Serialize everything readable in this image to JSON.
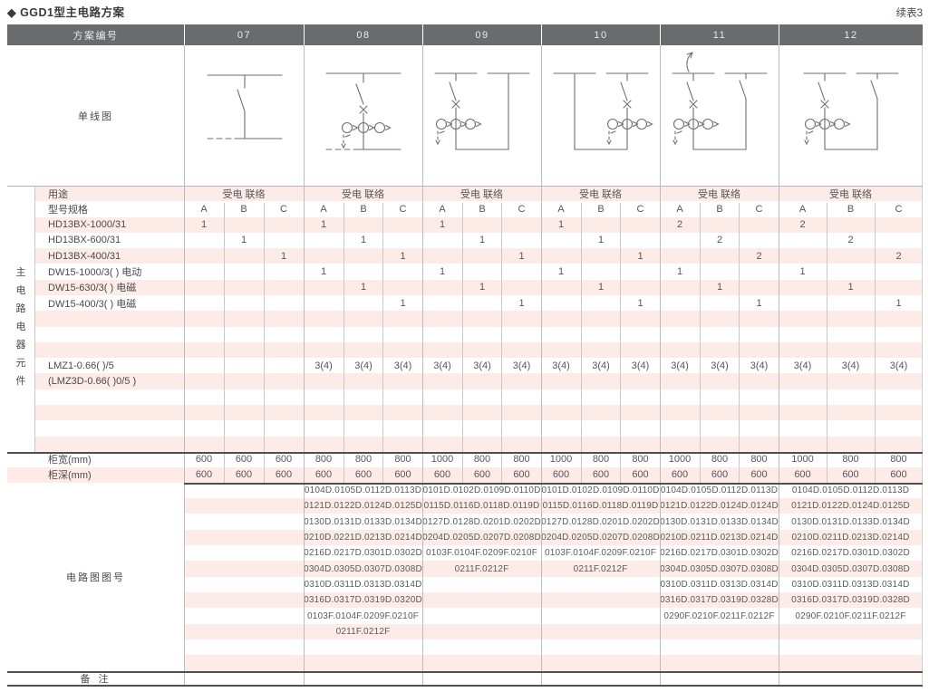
{
  "title": "◆ GGD1型主电路方案",
  "continuation_note": "续表3",
  "header": {
    "scheme_no_label": "方案编号",
    "schemes": [
      "07",
      "08",
      "09",
      "10",
      "11",
      "12"
    ]
  },
  "diagram_row_label": "单线图",
  "diagrams": [
    {
      "scheme": "07",
      "name": "isolator-feeder-diagram"
    },
    {
      "scheme": "08",
      "name": "isolator-breaker-ct-feeder-diagram"
    },
    {
      "scheme": "09",
      "name": "isolator-breaker-ct-tie-right-diagram"
    },
    {
      "scheme": "10",
      "name": "isolator-breaker-ct-tie-left-diagram"
    },
    {
      "scheme": "11",
      "name": "incoming-isolator-breaker-ct-tie-switch-diagram"
    },
    {
      "scheme": "12",
      "name": "isolator-breaker-ct-tie-switch-diagram"
    }
  ],
  "side_label_chars": [
    "主",
    "电",
    "路",
    "电",
    "器",
    "元",
    "件"
  ],
  "usage": {
    "label": "用途",
    "value": "受电 联络"
  },
  "spec_header": {
    "label": "型号规格",
    "columns": [
      "A",
      "B",
      "C"
    ]
  },
  "components": [
    {
      "label": "HD13BX-1000/31",
      "cells": [
        "1",
        "",
        "",
        "1",
        "",
        "",
        "1",
        "",
        "",
        "1",
        "",
        "",
        "2",
        "",
        "",
        "2",
        "",
        ""
      ]
    },
    {
      "label": "HD13BX-600/31",
      "cells": [
        "",
        "1",
        "",
        "",
        "1",
        "",
        "",
        "1",
        "",
        "",
        "1",
        "",
        "",
        "2",
        "",
        "",
        "2",
        ""
      ]
    },
    {
      "label": "HD13BX-400/31",
      "cells": [
        "",
        "",
        "1",
        "",
        "",
        "1",
        "",
        "",
        "1",
        "",
        "",
        "1",
        "",
        "",
        "2",
        "",
        "",
        "2"
      ]
    },
    {
      "label": "DW15-1000/3( )  电动",
      "cells": [
        "",
        "",
        "",
        "1",
        "",
        "",
        "1",
        "",
        "",
        "1",
        "",
        "",
        "1",
        "",
        "",
        "1",
        "",
        ""
      ]
    },
    {
      "label": "DW15-630/3( )  电磁",
      "cells": [
        "",
        "",
        "",
        "",
        "1",
        "",
        "",
        "1",
        "",
        "",
        "1",
        "",
        "",
        "1",
        "",
        "",
        "1",
        ""
      ]
    },
    {
      "label": "DW15-400/3( )  电磁",
      "cells": [
        "",
        "",
        "",
        "",
        "",
        "1",
        "",
        "",
        "1",
        "",
        "",
        "1",
        "",
        "",
        "1",
        "",
        "",
        "1"
      ]
    },
    {
      "label": "",
      "cells": []
    },
    {
      "label": "",
      "cells": []
    },
    {
      "label": "",
      "cells": []
    },
    {
      "label": "LMZ1-0.66( )/5",
      "cells": [
        "",
        "",
        "",
        "3(4)",
        "3(4)",
        "3(4)",
        "3(4)",
        "3(4)",
        "3(4)",
        "3(4)",
        "3(4)",
        "3(4)",
        "3(4)",
        "3(4)",
        "3(4)",
        "3(4)",
        "3(4)",
        "3(4)"
      ]
    },
    {
      "label": "(LMZ3D-0.66( )0/5 )",
      "cells": []
    },
    {
      "label": "",
      "cells": []
    },
    {
      "label": "",
      "cells": []
    },
    {
      "label": "",
      "cells": []
    },
    {
      "label": "",
      "cells": []
    }
  ],
  "cabinet_width": {
    "label": "柜宽(mm)",
    "cells": [
      "600",
      "600",
      "600",
      "800",
      "800",
      "800",
      "1000",
      "800",
      "800",
      "1000",
      "800",
      "800",
      "1000",
      "800",
      "800",
      "1000",
      "800",
      "800"
    ]
  },
  "cabinet_depth": {
    "label": "柜深(mm)",
    "cells": [
      "600",
      "600",
      "600",
      "600",
      "600",
      "600",
      "600",
      "600",
      "600",
      "600",
      "600",
      "600",
      "600",
      "600",
      "600",
      "600",
      "600",
      "600"
    ]
  },
  "drawing_numbers": {
    "label": "电路图图号",
    "schemes": {
      "07": [],
      "08": [
        "0104D.0105D.0112D.0113D",
        "0121D.0122D.0124D.0125D",
        "0130D.0131D.0133D.0134D",
        "0210D.0221D.0213D.0214D",
        "0216D.0217D.0301D.0302D",
        "0304D.0305D.0307D.0308D",
        "0310D.0311D.0313D.0314D",
        "0316D.0317D.0319D.0320D",
        "0103F.0104F.0209F.0210F",
        "0211F.0212F"
      ],
      "09": [
        "0101D.0102D.0109D.0110D",
        "0115D.0116D.0118D.0119D",
        "0127D.0128D.0201D.0202D",
        "0204D.0205D.0207D.0208D",
        "0103F.0104F.0209F.0210F",
        "0211F.0212F"
      ],
      "10": [
        "0101D.0102D.0109D.0110D",
        "0115D.0116D.0118D.0119D",
        "0127D.0128D.0201D.0202D",
        "0204D.0205D.0207D.0208D",
        "0103F.0104F.0209F.0210F",
        "0211F.0212F"
      ],
      "11": [
        "0104D.0105D.0112D.0113D",
        "0121D.0122D.0124D.0124D",
        "0130D.0131D.0133D.0134D",
        "0210D.0211D.0213D.0214D",
        "0216D.0217D.0301D.0302D",
        "0304D.0305D.0307D.0308D",
        "0310D.0311D.0313D.0314D",
        "0316D.0317D.0319D.0328D",
        "0290F.0210F.0211F.0212F"
      ],
      "12": [
        "0104D.0105D.0112D.0113D",
        "0121D.0122D.0124D.0125D",
        "0130D.0131D.0133D.0134D",
        "0210D.0211D.0213D.0214D",
        "0216D.0217D.0301D.0302D",
        "0304D.0305D.0307D.0308D",
        "0310D.0311D.0313D.0314D",
        "0316D.0317D.0319D.0328D",
        "0290F.0210F.0211F.0212F"
      ]
    }
  },
  "remark": {
    "label": "备 注"
  },
  "colors": {
    "header_bg": "#6a6b6d",
    "stripe_pink": "#fcebe6",
    "grid_line": "#bcbcbc",
    "heavy_line": "#4f4f50",
    "text": "#55565a"
  }
}
